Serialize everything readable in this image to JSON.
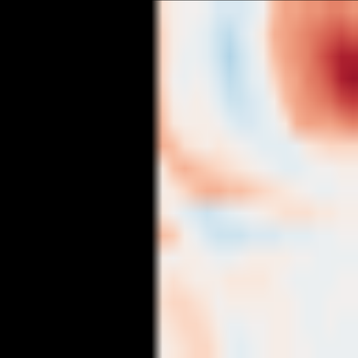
{
  "chart_data": {
    "type": "heatmap",
    "tick_labels": false,
    "zlim": [
      -1,
      1
    ],
    "z": [
      [
        null,
        null,
        null,
        null,
        null,
        null,
        null,
        null,
        null,
        null,
        null,
        null,
        null,
        null,
        0.15,
        0.05,
        0,
        0,
        -0.05,
        -0.15,
        -0.15,
        -0.15,
        -0.1,
        0,
        0.3,
        0.4,
        0.4,
        0.45,
        0.45,
        0.5,
        0.5,
        0.45
      ],
      [
        null,
        null,
        null,
        null,
        null,
        null,
        null,
        null,
        null,
        null,
        null,
        null,
        null,
        null,
        0.2,
        0.05,
        0,
        -0.05,
        -0.1,
        -0.2,
        -0.25,
        -0.15,
        -0.05,
        0.1,
        0.35,
        0.4,
        0.45,
        0.5,
        0.55,
        0.6,
        0.65,
        0.6
      ],
      [
        null,
        null,
        null,
        null,
        null,
        null,
        null,
        null,
        null,
        null,
        null,
        null,
        null,
        null,
        0.2,
        0.05,
        -0.05,
        -0.05,
        -0.1,
        -0.2,
        -0.3,
        -0.2,
        -0.1,
        0.05,
        0.3,
        0.4,
        0.45,
        0.5,
        0.6,
        0.7,
        0.8,
        0.8
      ],
      [
        null,
        null,
        null,
        null,
        null,
        null,
        null,
        null,
        null,
        null,
        null,
        null,
        null,
        null,
        0.2,
        0,
        -0.05,
        0,
        -0.05,
        -0.15,
        -0.25,
        -0.2,
        -0.1,
        -0.05,
        0.2,
        0.35,
        0.4,
        0.5,
        0.55,
        0.65,
        0.8,
        0.85
      ],
      [
        null,
        null,
        null,
        null,
        null,
        null,
        null,
        null,
        null,
        null,
        null,
        null,
        null,
        null,
        0.25,
        0.05,
        0,
        0.05,
        0,
        -0.1,
        -0.2,
        -0.2,
        -0.15,
        -0.1,
        0.05,
        0.3,
        0.4,
        0.45,
        0.5,
        0.55,
        0.65,
        0.7
      ],
      [
        null,
        null,
        null,
        null,
        null,
        null,
        null,
        null,
        null,
        null,
        null,
        null,
        null,
        null,
        0.3,
        0.1,
        0.05,
        0.05,
        0.05,
        0,
        -0.1,
        -0.15,
        -0.15,
        -0.1,
        -0.05,
        0.1,
        0.35,
        0.4,
        0.4,
        0.4,
        0.45,
        0.5
      ],
      [
        null,
        null,
        null,
        null,
        null,
        null,
        null,
        null,
        null,
        null,
        null,
        null,
        null,
        null,
        0.35,
        0.3,
        0.15,
        0.1,
        0.05,
        0.1,
        0.05,
        0,
        -0.05,
        -0.1,
        -0.1,
        -0.1,
        -0.05,
        0.1,
        0.15,
        0.2,
        0.2,
        0.2
      ],
      [
        null,
        null,
        null,
        null,
        null,
        null,
        null,
        null,
        null,
        null,
        null,
        null,
        null,
        null,
        0.1,
        0.3,
        0.35,
        0.3,
        0.25,
        0.2,
        0.15,
        0.1,
        0.05,
        0,
        -0.05,
        -0.1,
        -0.1,
        -0.05,
        0,
        0,
        0.05,
        0.05
      ],
      [
        null,
        null,
        null,
        null,
        null,
        null,
        null,
        null,
        null,
        null,
        null,
        null,
        null,
        null,
        0.05,
        0.1,
        0.2,
        0.3,
        0.35,
        0.35,
        0.3,
        0.3,
        0.25,
        0.2,
        0.15,
        0.1,
        0.05,
        0,
        -0.05,
        -0.05,
        0,
        0
      ],
      [
        null,
        null,
        null,
        null,
        null,
        null,
        null,
        null,
        null,
        null,
        null,
        null,
        null,
        null,
        0.1,
        0,
        -0.1,
        -0.15,
        -0.2,
        -0.15,
        -0.1,
        -0.05,
        0,
        0.05,
        0.1,
        0.15,
        0.15,
        0.15,
        0.1,
        0.1,
        0.05,
        0.05
      ],
      [
        null,
        null,
        null,
        null,
        null,
        null,
        null,
        null,
        null,
        null,
        null,
        null,
        null,
        null,
        0.3,
        0.25,
        0.05,
        -0.05,
        -0.15,
        -0.2,
        -0.2,
        -0.2,
        -0.15,
        -0.15,
        -0.15,
        -0.1,
        -0.1,
        -0.1,
        -0.05,
        -0.05,
        0,
        0
      ],
      [
        null,
        null,
        null,
        null,
        null,
        null,
        null,
        null,
        null,
        null,
        null,
        null,
        null,
        null,
        0.05,
        0,
        0.05,
        0.05,
        0,
        -0.05,
        -0.05,
        0,
        0.05,
        0.05,
        0.05,
        0.05,
        0,
        0,
        -0.05,
        -0.05,
        -0.05,
        -0.05
      ],
      [
        null,
        null,
        null,
        null,
        null,
        null,
        null,
        null,
        null,
        null,
        null,
        null,
        null,
        null,
        0.1,
        0.15,
        0.1,
        0.05,
        0.05,
        0.05,
        0.1,
        0.1,
        0.1,
        0.1,
        0.05,
        0,
        -0.05,
        -0.05,
        -0.05,
        -0.05,
        0,
        0
      ],
      [
        null,
        null,
        null,
        null,
        null,
        null,
        null,
        null,
        null,
        null,
        null,
        null,
        null,
        null,
        0.15,
        0.2,
        0.2,
        0.15,
        0.1,
        0,
        0.05,
        0.05,
        0.05,
        0.05,
        0.05,
        0.05,
        0,
        -0.05,
        -0.05,
        0,
        0,
        0
      ],
      [
        null,
        null,
        null,
        null,
        null,
        null,
        null,
        null,
        null,
        null,
        null,
        null,
        null,
        null,
        0.1,
        0.15,
        0.2,
        0.2,
        0.15,
        0.05,
        -0.05,
        -0.05,
        0,
        0,
        0.05,
        0.05,
        0,
        -0.05,
        -0.05,
        0,
        -0.05,
        -0.05
      ],
      [
        null,
        null,
        null,
        null,
        null,
        null,
        null,
        null,
        null,
        null,
        null,
        null,
        null,
        null,
        0.05,
        0.1,
        0.15,
        0.2,
        0.2,
        0.1,
        -0.05,
        -0.1,
        -0.05,
        0,
        0.05,
        0.05,
        0,
        0,
        -0.05,
        -0.05,
        -0.05,
        -0.05
      ]
    ]
  }
}
